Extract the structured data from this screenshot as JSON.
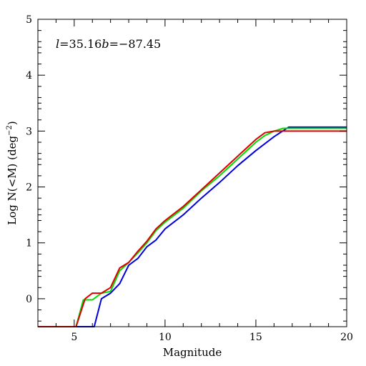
{
  "chart_data": {
    "type": "line",
    "title": "",
    "xlabel": "Magnitude",
    "ylabel": "Log N(<M) (deg",
    "ylabel_sup": "−2",
    "ylabel_close": ")",
    "xlim": [
      3,
      20
    ],
    "ylim": [
      -0.5,
      5
    ],
    "x_ticks": [
      5,
      10,
      15,
      20
    ],
    "y_ticks": [
      0,
      1,
      2,
      3,
      4,
      5
    ],
    "grid": false,
    "annotation": {
      "l_symbol": "l",
      "l_value": "=35.16",
      "b_symbol": "b",
      "b_value": "=−87.45"
    },
    "series": [
      {
        "color": "#0000dd",
        "x": [
          3,
          6.1,
          6.5,
          7.0,
          7.5,
          8.0,
          8.5,
          9.0,
          9.5,
          10,
          11,
          12,
          13,
          14,
          15,
          16,
          16.8,
          20
        ],
        "y": [
          -0.5,
          -0.5,
          0.0,
          0.1,
          0.27,
          0.6,
          0.72,
          0.93,
          1.05,
          1.25,
          1.5,
          1.8,
          2.08,
          2.38,
          2.65,
          2.9,
          3.07,
          3.07
        ]
      },
      {
        "color": "#00dd00",
        "x": [
          3,
          5.1,
          5.5,
          6.0,
          6.5,
          7.0,
          7.5,
          8.0,
          8.5,
          9.0,
          9.5,
          10,
          11,
          12,
          13,
          14,
          15,
          15.5,
          16,
          16.5,
          20
        ],
        "y": [
          -0.5,
          -0.5,
          -0.02,
          -0.02,
          0.1,
          0.13,
          0.5,
          0.65,
          0.82,
          1.0,
          1.22,
          1.37,
          1.62,
          1.93,
          2.2,
          2.5,
          2.8,
          2.92,
          3.0,
          3.05,
          3.05
        ]
      },
      {
        "color": "#dd0000",
        "x": [
          3,
          5.1,
          5.6,
          6.0,
          6.5,
          7.0,
          7.5,
          8.0,
          8.5,
          9.0,
          9.5,
          10,
          11,
          12,
          13,
          14,
          15,
          15.5,
          16,
          16.5,
          20
        ],
        "y": [
          -0.5,
          -0.5,
          0.0,
          0.1,
          0.1,
          0.2,
          0.55,
          0.65,
          0.85,
          1.03,
          1.25,
          1.4,
          1.65,
          1.95,
          2.25,
          2.55,
          2.85,
          2.97,
          3.0,
          3.0,
          3.0
        ]
      }
    ]
  }
}
